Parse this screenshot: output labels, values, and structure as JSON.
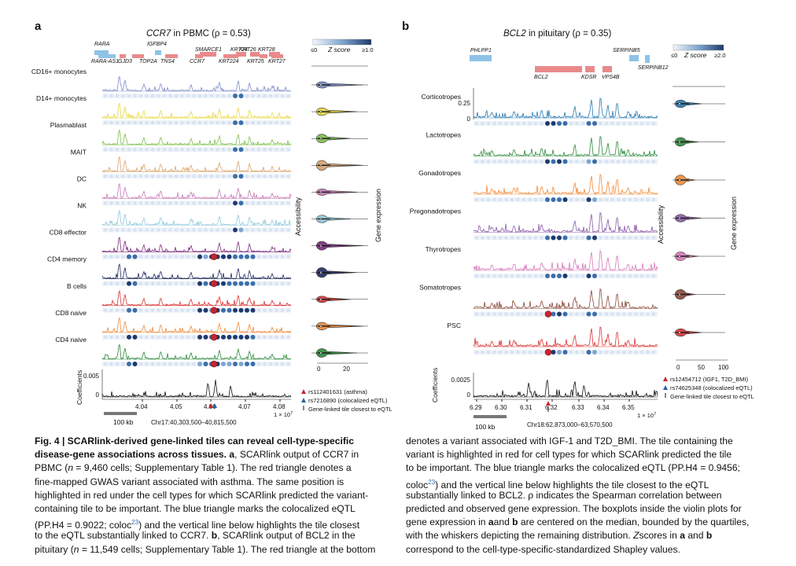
{
  "panel_a": {
    "letter": "a",
    "title": "CCR7 in PBMC (ρ = 0.53)",
    "genes_top": [
      "RARA",
      "IGFBP4",
      "SMARCE1",
      "KRT24",
      "KRT26",
      "KRT28"
    ],
    "genes_bottom": [
      "RARA-AS1",
      "GJD3",
      "TOP2A",
      "TNS4",
      "CCR7",
      "KRT224",
      "KRT25",
      "KRT27"
    ],
    "zscore_min": "≤0",
    "zscore_max": "≥1.0",
    "zscore_label": "Z score",
    "tracks": [
      {
        "label": "CD16+ monocytes",
        "color": "#7b8cc7"
      },
      {
        "label": "D14+ monocytes",
        "color": "#e8d83a"
      },
      {
        "label": "Plasmablast",
        "color": "#7cbf4a"
      },
      {
        "label": "MAIT",
        "color": "#d9a36a"
      },
      {
        "label": "DC",
        "color": "#c77ab8"
      },
      {
        "label": "NK",
        "color": "#8fc9d9"
      },
      {
        "label": "CD8 effector",
        "color": "#7a2a7d"
      },
      {
        "label": "CD4 memory",
        "color": "#1f2a5c"
      },
      {
        "label": "B cells",
        "color": "#d93535"
      },
      {
        "label": "CD8 naive",
        "color": "#ef8a3a"
      },
      {
        "label": "CD4 naive",
        "color": "#2e8a3d"
      }
    ],
    "coef_label": "Coefficients",
    "coef_tick": "0.005",
    "coef_zero": "0",
    "xticks": [
      "4.04",
      "4.05",
      "4.06",
      "4.07",
      "4.08"
    ],
    "xexp": "1 × 10",
    "xexp_sup": "7",
    "scale_bar": "100 kb",
    "region": "Chr17:40,303,500–40,815,500",
    "accessibility_label": "Accessibility",
    "gene_expr_label": "Gene expression",
    "violin_ticks": [
      "0",
      "20"
    ],
    "legend": [
      "rs112401631 (asthma)",
      "rs7216890 (colocalized eQTL)",
      "Gene-linked tile closest to eQTL"
    ]
  },
  "panel_b": {
    "letter": "b",
    "title": "BCL2 in pituitary (ρ = 0.35)",
    "genes": [
      "PHLPP1",
      "BCL2",
      "KDSR",
      "VPS4B",
      "SERPINB5",
      "SERPINB12"
    ],
    "zscore_min": "≤0",
    "zscore_max": "≥2.0",
    "zscore_label": "Z score",
    "tracks": [
      {
        "label": "Corticotropes",
        "color": "#2a7ab0"
      },
      {
        "label": "Lactotropes",
        "color": "#2e8a3d"
      },
      {
        "label": "Gonadotropes",
        "color": "#ef8a3a"
      },
      {
        "label": "Pregonadotropes",
        "color": "#8a5aa8"
      },
      {
        "label": "Thyrotropes",
        "color": "#d77ab8"
      },
      {
        "label": "Somatotropes",
        "color": "#8a4a3a"
      },
      {
        "label": "PSC",
        "color": "#d93535"
      }
    ],
    "yticks": [
      "0.25",
      "0"
    ],
    "coef_label": "Coefficients",
    "coef_tick": "0.0025",
    "coef_zero": "0",
    "xticks": [
      "6.29",
      "6.30",
      "6.31",
      "6.32",
      "6.33",
      "6.34",
      "6.35"
    ],
    "xexp": "1 × 10",
    "xexp_sup": "7",
    "scale_bar": "100 kb",
    "region": "Chr18:62,873,000–63,570,500",
    "accessibility_label": "Accessibility",
    "gene_expr_label": "Gene expression",
    "violin_ticks": [
      "0",
      "50",
      "100"
    ],
    "legend": [
      "rs12454712 (IGF1, T2D_BMI)",
      "rs74625348 (colocalized eQTL)",
      "Gene-linked tile closest to eQTL"
    ]
  },
  "caption_left": [
    [
      {
        "b": "Fig. 4 | SCARlink-derived gene-linked tiles can reveal cell-type-specific"
      }
    ],
    [
      {
        "b": "disease-gene associations across tissues. a"
      },
      {
        "t": ", SCARlink output of CCR7 in"
      }
    ],
    [
      {
        "t": "PBMC ("
      },
      {
        "i": "n"
      },
      {
        "t": " = 9,460 cells; Supplementary Table 1). The red triangle denotes a"
      }
    ],
    [
      {
        "t": "fine-mapped GWAS variant associated with asthma. The same position is"
      }
    ],
    [
      {
        "t": "highlighted in red under the cell types for which SCARlink predicted the variant-"
      }
    ],
    [
      {
        "t": "containing tile to be important. The blue triangle marks the colocalized eQTL"
      }
    ],
    [
      {
        "t": "(PP.H4 = 0.9022; coloc"
      },
      {
        "s": "23"
      },
      {
        "t": ") and the vertical line below highlights the tile closest"
      }
    ],
    [
      {
        "t": "to the eQTL substantially linked to CCR7. "
      },
      {
        "b": "b"
      },
      {
        "t": ", SCARlink output of BCL2 in the"
      }
    ],
    [
      {
        "t": "pituitary ("
      },
      {
        "i": "n"
      },
      {
        "t": " = 11,549 cells; Supplementary Table 1). The red triangle at the bottom"
      }
    ]
  ],
  "caption_right": [
    [
      {
        "t": "denotes a variant associated with IGF-1 and T2D_BMI. The tile containing the"
      }
    ],
    [
      {
        "t": "variant is highlighted in red for cell types for which SCARlink predicted the tile"
      }
    ],
    [
      {
        "t": "to be important. The blue triangle marks the colocalized eQTL (PP.H4 = 0.9456;"
      }
    ],
    [
      {
        "t": "coloc"
      },
      {
        "s": "23"
      },
      {
        "t": ") and the vertical line below highlights the tile closest to the eQTL"
      }
    ],
    [
      {
        "t": "substantially linked to BCL2. ρ indicates the Spearman correlation between"
      }
    ],
    [
      {
        "t": "predicted and observed gene expression. The boxplots inside the violin plots for"
      }
    ],
    [
      {
        "t": "gene expression in "
      },
      {
        "b": "a"
      },
      {
        "t": "and "
      },
      {
        "b": "b"
      },
      {
        "t": " are centered on the median, bounded by the quartiles,"
      }
    ],
    [
      {
        "t": "with the whiskers depicting the remaining distribution. "
      },
      {
        "i": "Z"
      },
      {
        "t": "scores in "
      },
      {
        "b": "a"
      },
      {
        "t": " and "
      },
      {
        "b": "b"
      }
    ],
    [
      {
        "t": "correspond to the cell-type-specific-standardized Shapley values."
      }
    ]
  ]
}
